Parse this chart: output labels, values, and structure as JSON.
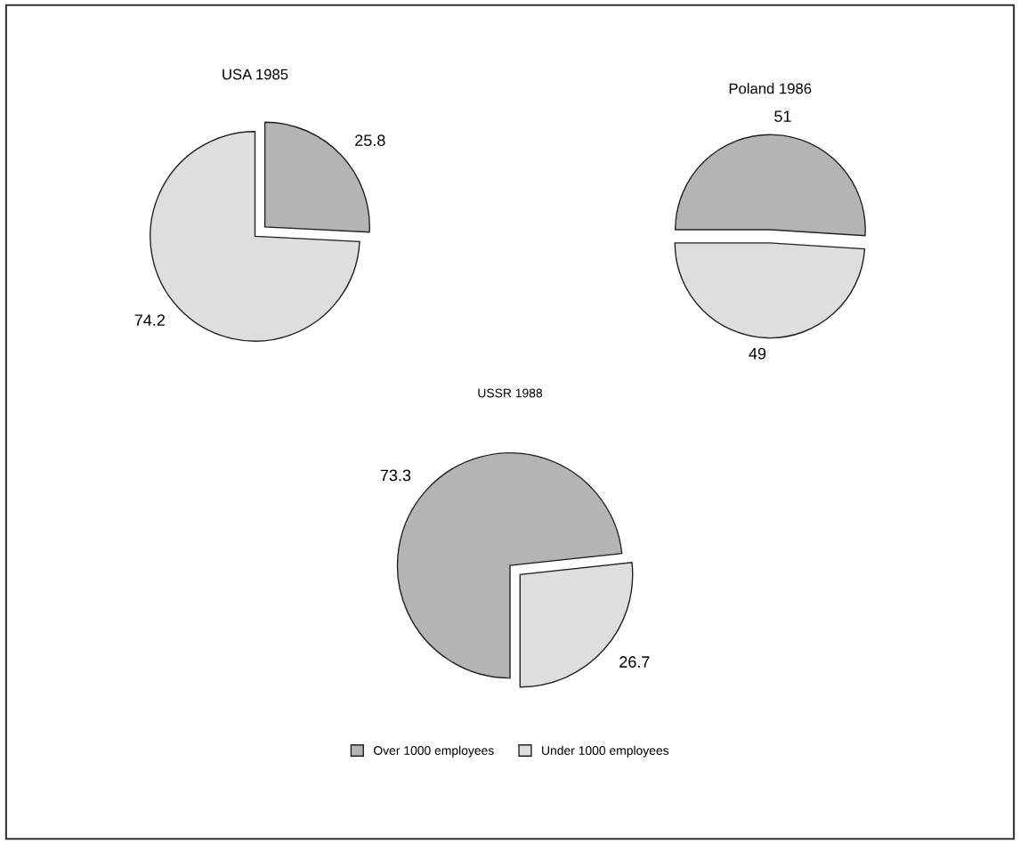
{
  "chart_data": [
    {
      "type": "pie",
      "title": "USA 1985",
      "categories": [
        "Over 1000 employees",
        "Under 1000 employees"
      ],
      "values": [
        25.8,
        74.2
      ],
      "colors": [
        "#b4b4b4",
        "#dedede"
      ],
      "data_labels": true,
      "legend": "bottom"
    },
    {
      "type": "pie",
      "title": "Poland 1986",
      "categories": [
        null,
        null
      ],
      "values": [
        51,
        49
      ],
      "colors": [
        "#b4b4b4",
        "#dedede"
      ],
      "data_labels": true
    },
    {
      "type": "pie",
      "title": "USSR 1988",
      "categories": [
        null,
        null
      ],
      "values": [
        73.3,
        26.7
      ],
      "colors": [
        "#b4b4b4",
        "#dedede"
      ],
      "data_labels": true
    }
  ]
}
